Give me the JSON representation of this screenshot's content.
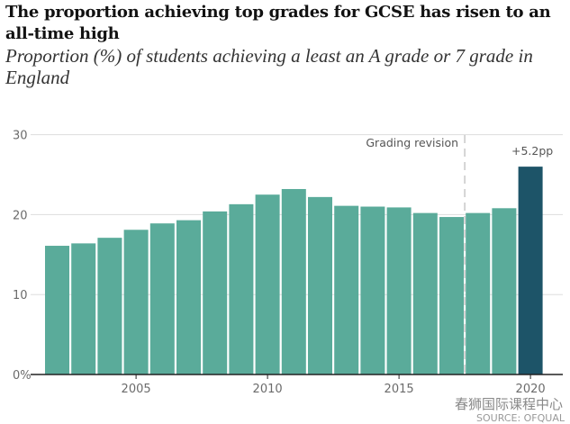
{
  "chart_data": {
    "type": "bar",
    "title": "The proportion achieving top grades for GCSE has risen to an all-time high",
    "subtitle": "Proportion (%) of students achieving a least an A grade or 7 grade in England",
    "categories": [
      2002,
      2003,
      2004,
      2005,
      2006,
      2007,
      2008,
      2009,
      2010,
      2011,
      2012,
      2013,
      2014,
      2015,
      2016,
      2017,
      2018,
      2019,
      2020
    ],
    "values": [
      16.1,
      16.4,
      17.1,
      18.1,
      18.9,
      19.3,
      20.4,
      21.3,
      22.5,
      23.2,
      22.2,
      21.1,
      21.0,
      20.9,
      20.2,
      19.7,
      20.2,
      20.8,
      26.0
    ],
    "highlight_category": 2020,
    "colors": {
      "bar": "#5aab9a",
      "highlight": "#1d5468",
      "grid": "#dddddd",
      "axis": "#222222"
    },
    "ylim": [
      0,
      30
    ],
    "yticks": [
      {
        "value": 0,
        "label": "0%"
      },
      {
        "value": 10,
        "label": "10"
      },
      {
        "value": 20,
        "label": "20"
      },
      {
        "value": 30,
        "label": "30"
      }
    ],
    "xticks": [
      2005,
      2010,
      2015,
      2020
    ],
    "grid": true,
    "annotations": {
      "revision_line_at": 2017.5,
      "revision_label": "Grading revision",
      "highlight_label": "+5.2pp"
    }
  },
  "footer": {
    "watermark": "春狮国际课程中心",
    "source": "SOURCE: OFQUAL"
  }
}
